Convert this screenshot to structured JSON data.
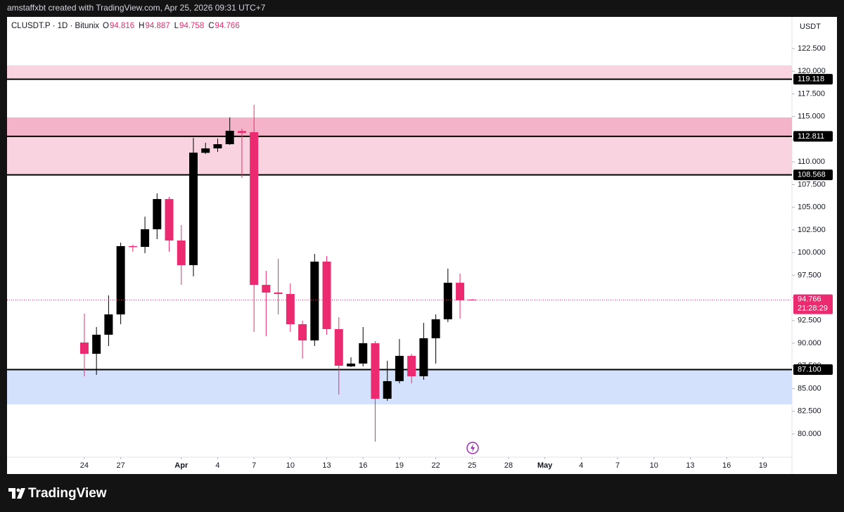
{
  "header": {
    "credit": "amstaffxbt created with TradingView.com, Apr 25, 2026 09:31 UTC+7",
    "logo": "TradingView"
  },
  "chart_data": {
    "type": "candlestick",
    "symbol": "CLUSDT.P · 1D · Bitunix",
    "ohlc_labels": [
      "O",
      "H",
      "L",
      "C"
    ],
    "currency": "USDT",
    "countdown": "21:28:29",
    "up_color": "#000000",
    "down_color": "#ec2a6f",
    "open": [
      90.08,
      88.84,
      90.94,
      93.18,
      100.71,
      100.63,
      102.57,
      105.9,
      101.33,
      98.61,
      111.0,
      111.49,
      111.95,
      113.4,
      113.27,
      96.44,
      95.59,
      95.43,
      92.1,
      90.31,
      99.0,
      91.56,
      87.45,
      87.76,
      90.0,
      83.88,
      85.82,
      88.61,
      86.36,
      90.55,
      92.64,
      96.67,
      94.816
    ],
    "high": [
      93.26,
      91.79,
      95.28,
      101.1,
      100.86,
      103.96,
      106.52,
      106.14,
      103.03,
      112.65,
      112.11,
      112.57,
      114.9,
      113.66,
      116.3,
      97.99,
      99.31,
      96.6,
      92.49,
      99.85,
      99.62,
      92.87,
      88.45,
      91.79,
      90.24,
      88.07,
      90.47,
      88.84,
      92.25,
      93.18,
      98.23,
      97.68,
      94.887
    ],
    "low": [
      86.36,
      86.51,
      89.69,
      92.1,
      100.09,
      99.93,
      101.48,
      100.09,
      96.44,
      97.37,
      110.87,
      111.1,
      111.88,
      108.23,
      91.25,
      90.78,
      93.18,
      91.25,
      88.3,
      89.69,
      90.94,
      84.34,
      87.37,
      87.45,
      79.15,
      83.65,
      85.58,
      85.58,
      85.97,
      87.76,
      92.33,
      92.72,
      94.758
    ],
    "close": [
      88.84,
      90.94,
      93.18,
      100.71,
      100.6,
      102.57,
      105.9,
      101.33,
      98.61,
      111.02,
      111.49,
      111.95,
      113.43,
      113.2,
      96.44,
      95.59,
      95.43,
      92.1,
      90.31,
      99.0,
      91.56,
      87.52,
      87.76,
      90.0,
      83.88,
      85.82,
      88.61,
      86.36,
      90.55,
      92.64,
      96.67,
      94.74,
      94.766
    ],
    "xlim": [
      -6.38,
      58.39
    ],
    "xticks": [
      {
        "value": 0,
        "label": "24"
      },
      {
        "value": 3,
        "label": "27"
      },
      {
        "value": 8,
        "label": "Apr"
      },
      {
        "value": 11,
        "label": "4"
      },
      {
        "value": 14,
        "label": "7"
      },
      {
        "value": 17,
        "label": "10"
      },
      {
        "value": 20,
        "label": "13"
      },
      {
        "value": 23,
        "label": "16"
      },
      {
        "value": 26,
        "label": "19"
      },
      {
        "value": 29,
        "label": "22"
      },
      {
        "value": 32,
        "label": "25"
      },
      {
        "value": 35,
        "label": "28"
      },
      {
        "value": 38,
        "label": "May"
      },
      {
        "value": 41,
        "label": "4"
      },
      {
        "value": 44,
        "label": "7"
      },
      {
        "value": 47,
        "label": "10"
      },
      {
        "value": 50,
        "label": "13"
      },
      {
        "value": 53,
        "label": "16"
      },
      {
        "value": 56,
        "label": "19"
      }
    ],
    "ylim": [
      77.44,
      125.99
    ],
    "yticks": [
      {
        "value": 80,
        "label": "80.000"
      },
      {
        "value": 82.5,
        "label": "82.500"
      },
      {
        "value": 85,
        "label": "85.000"
      },
      {
        "value": 87.5,
        "label": "87.500"
      },
      {
        "value": 90,
        "label": "90.000"
      },
      {
        "value": 92.5,
        "label": "92.500"
      },
      {
        "value": 95,
        "label": "95.000"
      },
      {
        "value": 97.5,
        "label": "97.500"
      },
      {
        "value": 100,
        "label": "100.000"
      },
      {
        "value": 102.5,
        "label": "102.500"
      },
      {
        "value": 105,
        "label": "105.000"
      },
      {
        "value": 107.5,
        "label": "107.500"
      },
      {
        "value": 110,
        "label": "110.000"
      },
      {
        "value": 112.5,
        "label": "112.500"
      },
      {
        "value": 115,
        "label": "115.000"
      },
      {
        "value": 117.5,
        "label": "117.500"
      },
      {
        "value": 120,
        "label": "120.000"
      },
      {
        "value": 122.5,
        "label": "122.500"
      }
    ],
    "zones": [
      {
        "from": 119.118,
        "to": 120.64,
        "color": "#f9d3e0"
      },
      {
        "from": 112.811,
        "to": 114.9,
        "color": "#f5b3ca"
      },
      {
        "from": 108.568,
        "to": 112.811,
        "color": "#f9d3e0"
      },
      {
        "from": 83.26,
        "to": {
          "value": 87.1,
          "label": "87.100"
        },
        "color": "#d3e1fc"
      }
    ],
    "levels": [
      119.118,
      112.811,
      108.568,
      {
        "value": 87.1,
        "label": "87.100"
      }
    ]
  }
}
